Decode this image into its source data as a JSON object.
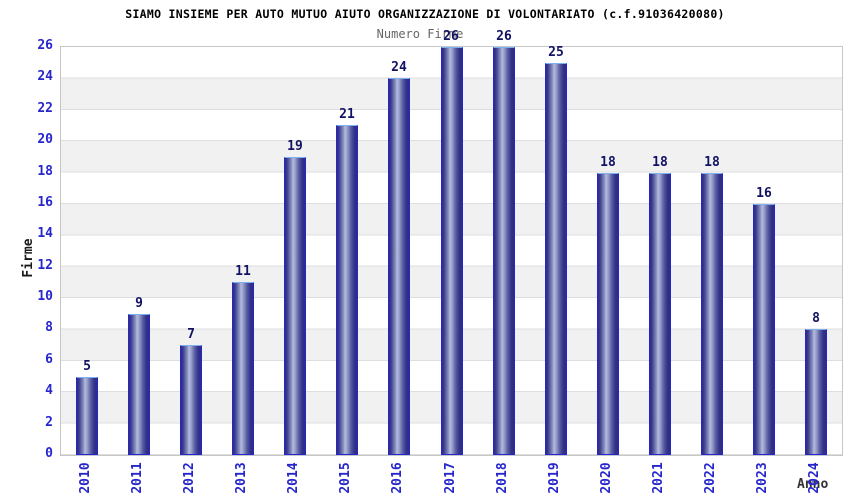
{
  "chart_data": {
    "type": "bar",
    "title": "SIAMO INSIEME PER AUTO MUTUO AIUTO ORGANIZZAZIONE DI VOLONTARIATO (c.f.91036420080)",
    "subtitle": "Numero Firme",
    "xlabel": "Anno",
    "ylabel": "Firme",
    "categories": [
      "2010",
      "2011",
      "2012",
      "2013",
      "2014",
      "2015",
      "2016",
      "2017",
      "2018",
      "2019",
      "2020",
      "2021",
      "2022",
      "2023",
      "2024"
    ],
    "values": [
      5,
      9,
      7,
      11,
      19,
      21,
      24,
      26,
      26,
      25,
      18,
      18,
      18,
      16,
      8
    ],
    "ylim": [
      0,
      26
    ],
    "ytick_step": 2,
    "yticks": [
      0,
      2,
      4,
      6,
      8,
      10,
      12,
      14,
      16,
      18,
      20,
      22,
      24,
      26
    ],
    "grid": "horizontal alternating bands, white and light gray, every 2 units",
    "legend": "none",
    "bar_value_labels": true,
    "x_tick_rotation_deg": 90,
    "colors": {
      "bar_border": "#2525d2",
      "bar_top_border": "#7db0ef",
      "bar_gradient_dark": "#2d2d7c",
      "bar_gradient_light": "#b4bade",
      "tick_text": "#2626cc",
      "value_label_text": "#121264",
      "title_text": "#000000",
      "subtitle_text": "#666666",
      "band_gray": "#f1f1f1",
      "plot_border": "#c6c6c6",
      "background": "#ffffff"
    }
  }
}
